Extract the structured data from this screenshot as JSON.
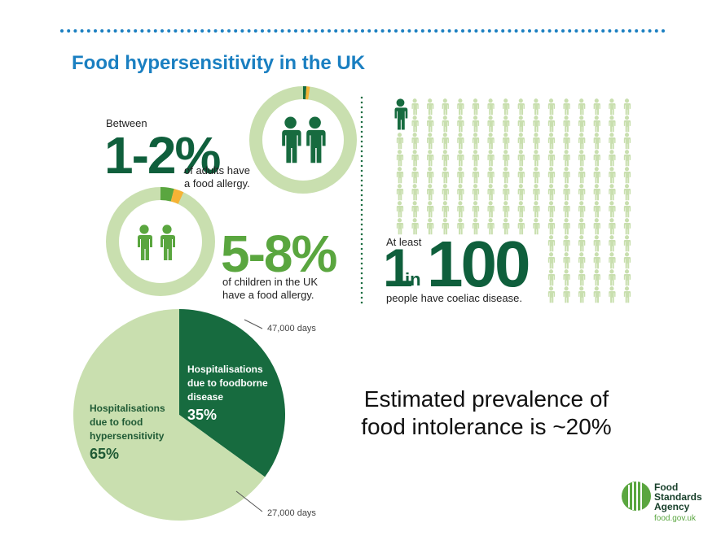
{
  "header": {
    "title": "Food hypersensitivity in the UK"
  },
  "adults": {
    "intro": "Between",
    "figure": "1-2%",
    "lines": [
      "of adults have",
      "a food allergy."
    ]
  },
  "children": {
    "figure": "5-8%",
    "lines": [
      "of children in the UK",
      "have a food allergy."
    ]
  },
  "coeliac": {
    "intro": "At least",
    "one": "1",
    "in": "in",
    "hundred": "100",
    "caption": "people have coeliac disease."
  },
  "intolerance": {
    "lines": [
      "Estimated prevalence of",
      "food intolerance is ~20%"
    ]
  },
  "logo": {
    "lines": [
      "Food",
      "Standards",
      "Agency"
    ],
    "url": "food.gov.uk"
  },
  "chart_data": {
    "type": "pie",
    "categories": [
      "Hospitalisations due to foodborne disease",
      "Hospitalisations due to food hypersensitivity"
    ],
    "values": [
      35,
      65
    ],
    "value_labels": [
      "35%",
      "65%"
    ],
    "colors": [
      "#176b3f",
      "#c9dfaf"
    ],
    "annotations": [
      "47,000 days",
      "27,000 days"
    ]
  }
}
